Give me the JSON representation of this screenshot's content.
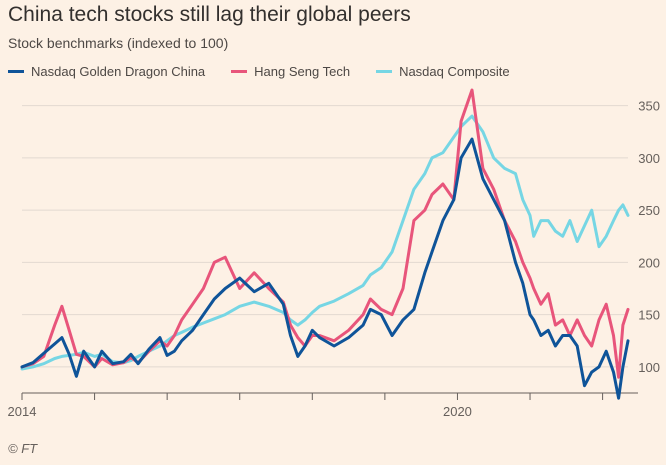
{
  "title": "China tech stocks still lag their global peers",
  "subtitle": "Stock benchmarks (indexed to 100)",
  "source": "© FT",
  "colors": {
    "background": "#fdf1e5",
    "grid": "#e2d9d0",
    "axis": "#66605c"
  },
  "chart_data": {
    "type": "line",
    "title": "China tech stocks still lag their global peers",
    "subtitle": "Stock benchmarks (indexed to 100)",
    "xlabel": "",
    "ylabel": "",
    "xlim": [
      2014.0,
      2022.35
    ],
    "ylim": [
      75,
      365
    ],
    "y_ticks": [
      100,
      150,
      200,
      250,
      300,
      350
    ],
    "y_tick_labels": [
      "100",
      "150",
      "200",
      "250",
      "300",
      "350"
    ],
    "x_ticks": [
      2014,
      2015,
      2016,
      2017,
      2018,
      2019,
      2020,
      2021,
      2022
    ],
    "x_tick_labels": [
      "2014",
      "",
      "",
      "",
      "",
      "",
      "2020",
      "",
      ""
    ],
    "grid": "horizontal",
    "legend_position": "top-left",
    "series": [
      {
        "name": "Nasdaq Golden Dragon China",
        "color": "#0f5499",
        "x": [
          2014.0,
          2014.15,
          2014.3,
          2014.45,
          2014.55,
          2014.65,
          2014.75,
          2014.85,
          2015.0,
          2015.1,
          2015.25,
          2015.4,
          2015.5,
          2015.6,
          2015.75,
          2015.9,
          2016.0,
          2016.1,
          2016.2,
          2016.35,
          2016.5,
          2016.65,
          2016.8,
          2017.0,
          2017.2,
          2017.4,
          2017.6,
          2017.7,
          2017.8,
          2017.9,
          2018.0,
          2018.1,
          2018.3,
          2018.5,
          2018.7,
          2018.8,
          2018.95,
          2019.1,
          2019.25,
          2019.4,
          2019.55,
          2019.65,
          2019.8,
          2019.95,
          2020.05,
          2020.2,
          2020.35,
          2020.5,
          2020.65,
          2020.8,
          2020.9,
          2021.0,
          2021.05,
          2021.15,
          2021.25,
          2021.35,
          2021.45,
          2021.55,
          2021.65,
          2021.75,
          2021.85,
          2021.95,
          2022.05,
          2022.15,
          2022.22,
          2022.28,
          2022.35
        ],
        "values": [
          100,
          104,
          113,
          122,
          128,
          112,
          91,
          115,
          100,
          115,
          103,
          105,
          112,
          103,
          117,
          128,
          111,
          115,
          125,
          135,
          150,
          165,
          175,
          185,
          172,
          180,
          160,
          130,
          110,
          120,
          135,
          128,
          120,
          128,
          140,
          155,
          150,
          130,
          145,
          155,
          190,
          210,
          240,
          260,
          300,
          318,
          280,
          260,
          240,
          200,
          180,
          150,
          145,
          130,
          135,
          120,
          130,
          130,
          120,
          82,
          95,
          100,
          115,
          95,
          70,
          100,
          125
        ]
      },
      {
        "name": "Hang Seng Tech",
        "color": "#e8557b",
        "x": [
          2014.0,
          2014.15,
          2014.3,
          2014.45,
          2014.55,
          2014.65,
          2014.75,
          2014.85,
          2015.0,
          2015.1,
          2015.25,
          2015.4,
          2015.5,
          2015.6,
          2015.75,
          2015.9,
          2016.0,
          2016.1,
          2016.2,
          2016.35,
          2016.5,
          2016.65,
          2016.8,
          2017.0,
          2017.2,
          2017.4,
          2017.6,
          2017.7,
          2017.8,
          2017.9,
          2018.0,
          2018.1,
          2018.3,
          2018.5,
          2018.7,
          2018.8,
          2018.95,
          2019.1,
          2019.25,
          2019.4,
          2019.55,
          2019.65,
          2019.8,
          2019.95,
          2020.05,
          2020.2,
          2020.35,
          2020.5,
          2020.65,
          2020.8,
          2020.9,
          2021.0,
          2021.05,
          2021.15,
          2021.25,
          2021.35,
          2021.45,
          2021.55,
          2021.65,
          2021.75,
          2021.85,
          2021.95,
          2022.05,
          2022.15,
          2022.22,
          2022.28,
          2022.35
        ],
        "values": [
          100,
          103,
          110,
          140,
          158,
          135,
          112,
          110,
          100,
          108,
          102,
          104,
          109,
          104,
          115,
          125,
          120,
          130,
          145,
          160,
          175,
          200,
          205,
          175,
          190,
          175,
          162,
          140,
          128,
          120,
          130,
          130,
          125,
          135,
          150,
          165,
          155,
          150,
          175,
          240,
          250,
          265,
          275,
          260,
          335,
          365,
          290,
          270,
          240,
          220,
          200,
          185,
          175,
          160,
          170,
          140,
          145,
          130,
          145,
          130,
          120,
          145,
          160,
          130,
          90,
          140,
          155
        ]
      },
      {
        "name": "Nasdaq Composite",
        "color": "#76d6e4",
        "x": [
          2014.0,
          2014.15,
          2014.3,
          2014.45,
          2014.55,
          2014.65,
          2014.75,
          2014.85,
          2015.0,
          2015.1,
          2015.25,
          2015.4,
          2015.5,
          2015.6,
          2015.75,
          2015.9,
          2016.0,
          2016.1,
          2016.2,
          2016.35,
          2016.5,
          2016.65,
          2016.8,
          2017.0,
          2017.2,
          2017.4,
          2017.6,
          2017.7,
          2017.8,
          2017.9,
          2018.0,
          2018.1,
          2018.3,
          2018.5,
          2018.7,
          2018.8,
          2018.95,
          2019.1,
          2019.25,
          2019.4,
          2019.55,
          2019.65,
          2019.8,
          2019.95,
          2020.05,
          2020.2,
          2020.35,
          2020.5,
          2020.65,
          2020.8,
          2020.9,
          2021.0,
          2021.05,
          2021.15,
          2021.25,
          2021.35,
          2021.45,
          2021.55,
          2021.65,
          2021.75,
          2021.85,
          2021.95,
          2022.05,
          2022.15,
          2022.22,
          2022.28,
          2022.35
        ],
        "values": [
          98,
          100,
          103,
          108,
          110,
          111,
          112,
          114,
          110,
          112,
          105,
          104,
          106,
          110,
          115,
          120,
          125,
          130,
          133,
          138,
          142,
          146,
          150,
          158,
          162,
          158,
          152,
          145,
          140,
          145,
          152,
          158,
          163,
          170,
          178,
          188,
          195,
          210,
          240,
          270,
          285,
          300,
          305,
          320,
          330,
          340,
          325,
          300,
          290,
          285,
          260,
          245,
          225,
          240,
          240,
          230,
          225,
          240,
          220,
          235,
          250,
          215,
          225,
          240,
          250,
          255,
          245
        ]
      }
    ]
  }
}
